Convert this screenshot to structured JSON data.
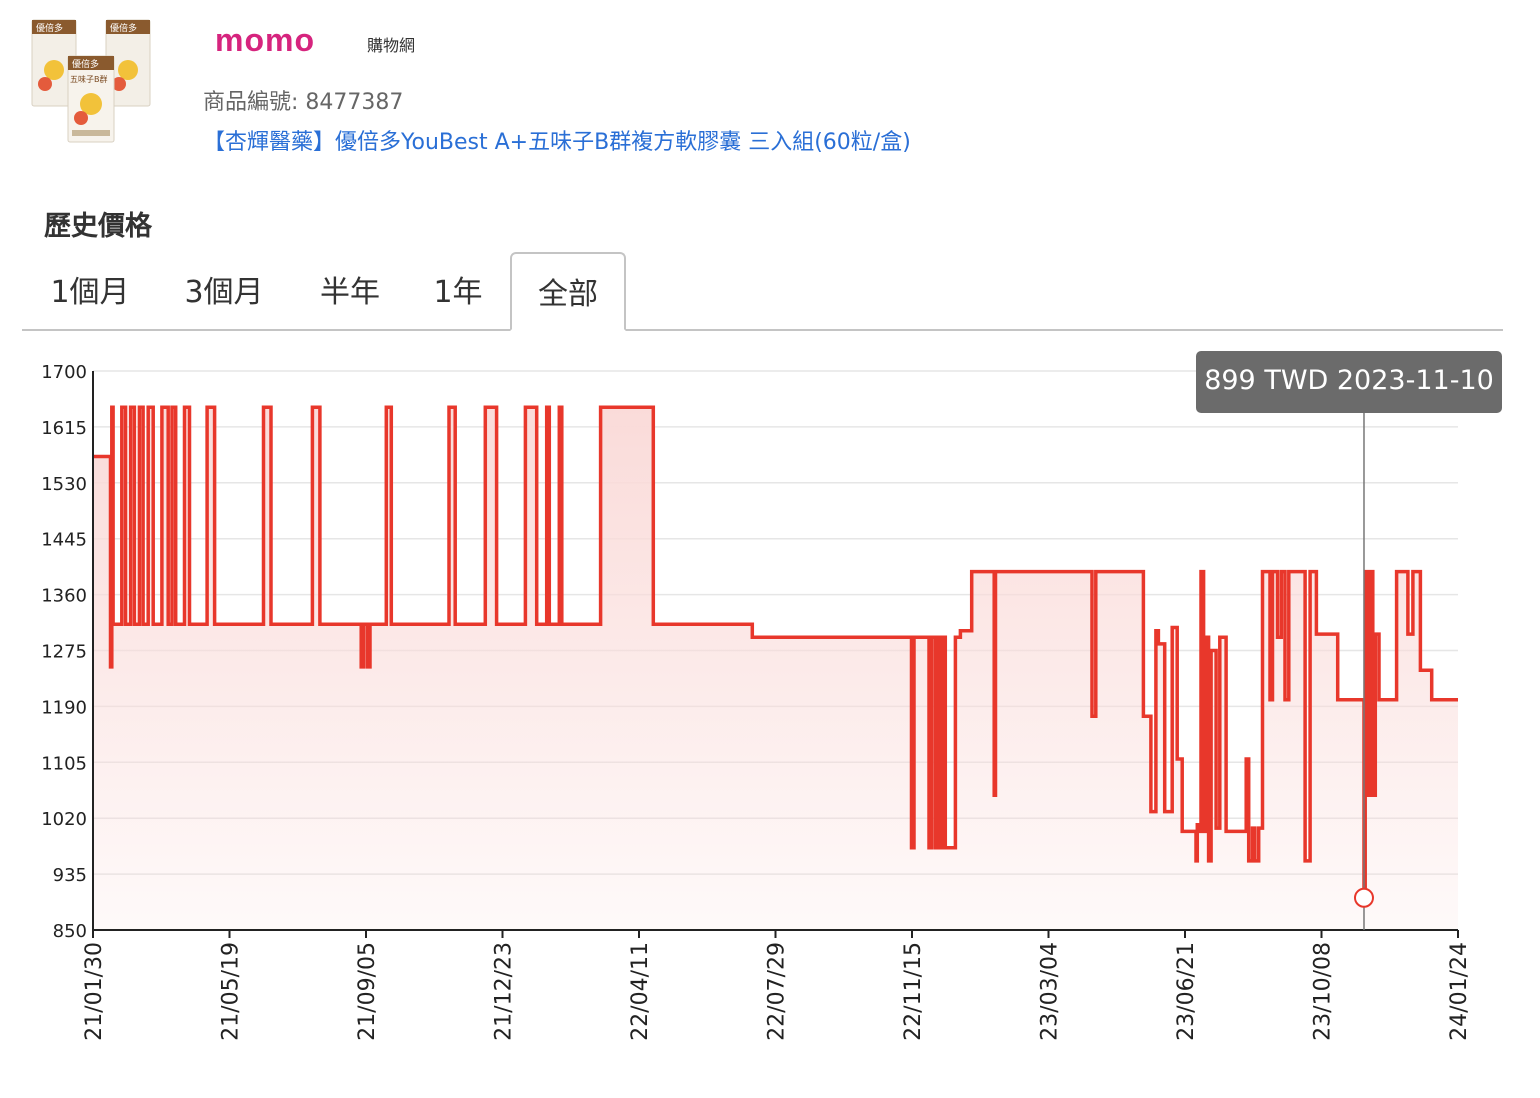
{
  "brand": {
    "logo_text": "momo",
    "sub_text": "購物網"
  },
  "product": {
    "id_label": "商品編號: 8477387",
    "name": "【杏輝醫藥】優倍多YouBest A+五味子B群複方軟膠囊 三入組(60粒/盒)",
    "thumb_texts": [
      "優倍多",
      "五味子B群"
    ]
  },
  "section_title": "歷史價格",
  "tabs": [
    {
      "label": "1個月",
      "active": false
    },
    {
      "label": "3個月",
      "active": false
    },
    {
      "label": "半年",
      "active": false
    },
    {
      "label": "1年",
      "active": false
    },
    {
      "label": "全部",
      "active": true
    }
  ],
  "tooltip": {
    "text": "899 TWD 2023-11-10"
  },
  "colors": {
    "line": "#e8372b",
    "fill": "#fadbd9",
    "tooltip_bg": "#6b6b6b",
    "link": "#2a6fd6",
    "brand": "#d6247e"
  },
  "chart_data": {
    "type": "line",
    "step": true,
    "currency": "TWD",
    "ylim": [
      850,
      1700
    ],
    "yticks": [
      1700,
      1615,
      1530,
      1445,
      1360,
      1275,
      1190,
      1105,
      1020,
      935,
      850
    ],
    "xlim": [
      "2021-01-30",
      "2024-01-24"
    ],
    "xticks": [
      "21/01/30",
      "21/05/19",
      "21/09/05",
      "21/12/23",
      "22/04/11",
      "22/07/29",
      "22/11/15",
      "23/03/04",
      "23/06/21",
      "23/10/08",
      "24/01/24"
    ],
    "grid": true,
    "highlight": {
      "date": "2023-11-10",
      "price": 899
    },
    "series": [
      {
        "points": [
          [
            "2021-01-30",
            1570
          ],
          [
            "2021-02-13",
            1250
          ],
          [
            "2021-02-14",
            1645
          ],
          [
            "2021-02-15",
            1315
          ],
          [
            "2021-02-22",
            1645
          ],
          [
            "2021-02-25",
            1315
          ],
          [
            "2021-03-01",
            1645
          ],
          [
            "2021-03-04",
            1315
          ],
          [
            "2021-03-08",
            1645
          ],
          [
            "2021-03-11",
            1315
          ],
          [
            "2021-03-15",
            1645
          ],
          [
            "2021-03-19",
            1315
          ],
          [
            "2021-03-26",
            1645
          ],
          [
            "2021-03-31",
            1315
          ],
          [
            "2021-04-03",
            1645
          ],
          [
            "2021-04-06",
            1315
          ],
          [
            "2021-04-13",
            1645
          ],
          [
            "2021-04-17",
            1315
          ],
          [
            "2021-05-01",
            1645
          ],
          [
            "2021-05-07",
            1315
          ],
          [
            "2021-06-15",
            1645
          ],
          [
            "2021-06-21",
            1315
          ],
          [
            "2021-07-24",
            1645
          ],
          [
            "2021-07-30",
            1315
          ],
          [
            "2021-09-01",
            1250
          ],
          [
            "2021-09-03",
            1315
          ],
          [
            "2021-09-06",
            1250
          ],
          [
            "2021-09-08",
            1315
          ],
          [
            "2021-09-21",
            1645
          ],
          [
            "2021-09-25",
            1315
          ],
          [
            "2021-11-10",
            1645
          ],
          [
            "2021-11-15",
            1315
          ],
          [
            "2021-12-09",
            1645
          ],
          [
            "2021-12-18",
            1315
          ],
          [
            "2022-01-10",
            1645
          ],
          [
            "2022-01-19",
            1315
          ],
          [
            "2022-01-27",
            1645
          ],
          [
            "2022-01-29",
            1315
          ],
          [
            "2022-02-06",
            1645
          ],
          [
            "2022-02-08",
            1315
          ],
          [
            "2022-03-11",
            1645
          ],
          [
            "2022-04-22",
            1315
          ],
          [
            "2022-07-10",
            1295
          ],
          [
            "2022-11-14",
            975
          ],
          [
            "2022-11-16",
            1295
          ],
          [
            "2022-11-28",
            975
          ],
          [
            "2022-11-30",
            1295
          ],
          [
            "2022-12-03",
            975
          ],
          [
            "2022-12-05",
            1295
          ],
          [
            "2022-12-07",
            975
          ],
          [
            "2022-12-09",
            1295
          ],
          [
            "2022-12-11",
            975
          ],
          [
            "2022-12-19",
            1295
          ],
          [
            "2022-12-23",
            1305
          ],
          [
            "2023-01-01",
            1395
          ],
          [
            "2023-01-19",
            1055
          ],
          [
            "2023-01-20",
            1395
          ],
          [
            "2023-04-07",
            1175
          ],
          [
            "2023-04-10",
            1395
          ],
          [
            "2023-05-18",
            1175
          ],
          [
            "2023-05-24",
            1030
          ],
          [
            "2023-05-28",
            1305
          ],
          [
            "2023-05-30",
            1285
          ],
          [
            "2023-06-04",
            1030
          ],
          [
            "2023-06-10",
            1310
          ],
          [
            "2023-06-14",
            1110
          ],
          [
            "2023-06-18",
            1000
          ],
          [
            "2023-06-29",
            955
          ],
          [
            "2023-06-30",
            1010
          ],
          [
            "2023-07-02",
            1000
          ],
          [
            "2023-07-03",
            1395
          ],
          [
            "2023-07-05",
            1000
          ],
          [
            "2023-07-07",
            1295
          ],
          [
            "2023-07-09",
            955
          ],
          [
            "2023-07-11",
            1275
          ],
          [
            "2023-07-15",
            1005
          ],
          [
            "2023-07-18",
            1295
          ],
          [
            "2023-07-23",
            1000
          ],
          [
            "2023-08-08",
            1110
          ],
          [
            "2023-08-10",
            955
          ],
          [
            "2023-08-13",
            1005
          ],
          [
            "2023-08-15",
            955
          ],
          [
            "2023-08-18",
            1005
          ],
          [
            "2023-08-21",
            1395
          ],
          [
            "2023-08-27",
            1200
          ],
          [
            "2023-08-29",
            1395
          ],
          [
            "2023-09-02",
            1295
          ],
          [
            "2023-09-05",
            1395
          ],
          [
            "2023-09-08",
            1200
          ],
          [
            "2023-09-11",
            1395
          ],
          [
            "2023-09-24",
            955
          ],
          [
            "2023-09-28",
            1395
          ],
          [
            "2023-10-03",
            1300
          ],
          [
            "2023-10-20",
            1200
          ],
          [
            "2023-11-10",
            899
          ],
          [
            "2023-11-11",
            1395
          ],
          [
            "2023-11-13",
            1055
          ],
          [
            "2023-11-15",
            1395
          ],
          [
            "2023-11-17",
            1055
          ],
          [
            "2023-11-19",
            1300
          ],
          [
            "2023-11-22",
            1200
          ],
          [
            "2023-12-06",
            1395
          ],
          [
            "2023-12-15",
            1300
          ],
          [
            "2023-12-19",
            1395
          ],
          [
            "2023-12-25",
            1245
          ],
          [
            "2024-01-03",
            1200
          ],
          [
            "2024-01-24",
            1200
          ]
        ]
      }
    ]
  }
}
